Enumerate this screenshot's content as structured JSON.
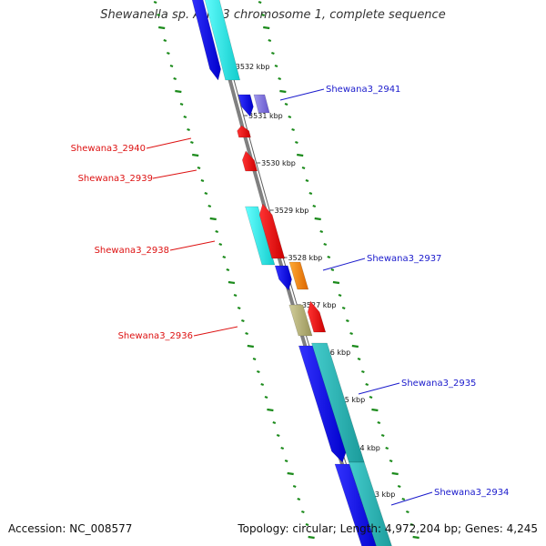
{
  "title": "Shewanella sp. ANA-3 chromosome 1, complete sequence",
  "footer": {
    "accession": "Accession: NC_008577",
    "summary": "Topology: circular; Length: 4,972,204 bp; Genes: 4,245"
  },
  "colors": {
    "backbone": "#808080",
    "gc_ticks": "#1a8a1a",
    "forward_label": "#1a1acc",
    "reverse_label": "#dd1111",
    "cds_blue": "#0000ee",
    "cds_cyan": "#22dddd",
    "cds_teal": "#27b5b5",
    "cds_red": "#ee0000",
    "cds_orange": "#ff8800",
    "cds_lavender": "#8577dd",
    "cds_khaki": "#b7b377"
  },
  "scale_marks": [
    {
      "label": "3532 kbp"
    },
    {
      "label": "3531 kbp"
    },
    {
      "label": "3530 kbp"
    },
    {
      "label": "3529 kbp"
    },
    {
      "label": "3528 kbp"
    },
    {
      "label": "3527 kbp"
    },
    {
      "label": "3526 kbp"
    },
    {
      "label": "3525 kbp"
    },
    {
      "label": "3524 kbp"
    },
    {
      "label": "3523 kbp"
    }
  ],
  "gene_labels": [
    {
      "label": "Shewana3_2941",
      "strand": "forward"
    },
    {
      "label": "Shewana3_2940",
      "strand": "reverse"
    },
    {
      "label": "Shewana3_2939",
      "strand": "reverse"
    },
    {
      "label": "Shewana3_2938",
      "strand": "reverse"
    },
    {
      "label": "Shewana3_2937",
      "strand": "forward"
    },
    {
      "label": "Shewana3_2936",
      "strand": "reverse"
    },
    {
      "label": "Shewana3_2935",
      "strand": "forward"
    },
    {
      "label": "Shewana3_2934",
      "strand": "forward"
    }
  ]
}
